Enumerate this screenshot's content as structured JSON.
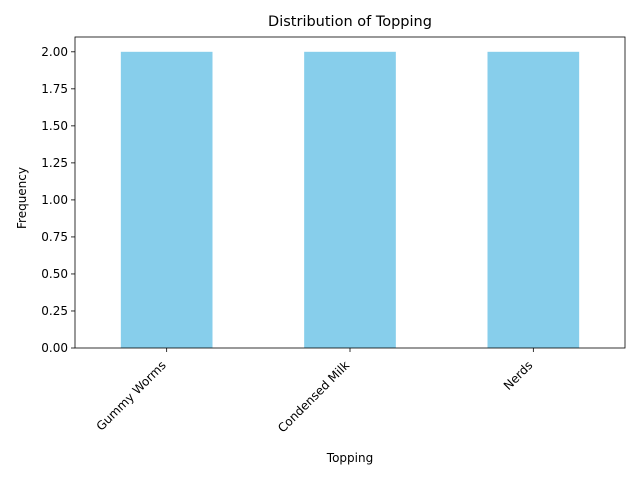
{
  "chart_data": {
    "type": "bar",
    "title": "Distribution of Topping",
    "xlabel": "Topping",
    "ylabel": "Frequency",
    "categories": [
      "Gummy Worms",
      "Condensed Milk",
      "Nerds"
    ],
    "values": [
      2,
      2,
      2
    ],
    "ylim": [
      0,
      2.1
    ],
    "yticks": [
      0.0,
      0.25,
      0.5,
      0.75,
      1.0,
      1.25,
      1.5,
      1.75,
      2.0
    ],
    "ytick_labels": [
      "0.00",
      "0.25",
      "0.50",
      "0.75",
      "1.00",
      "1.25",
      "1.50",
      "1.75",
      "2.00"
    ],
    "bar_color": "#87ceeb",
    "grid": false,
    "legend": false,
    "xtick_rotation_deg": 45
  }
}
